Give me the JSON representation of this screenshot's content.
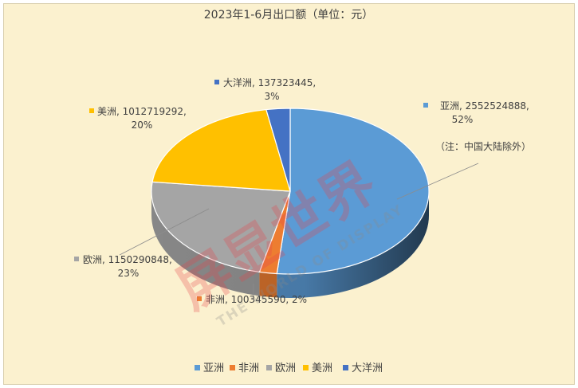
{
  "chart_data": {
    "type": "pie",
    "title": "2023年1-6月出口额（单位：元）",
    "categories": [
      "亚洲",
      "非洲",
      "欧洲",
      "美洲",
      "大洋洲"
    ],
    "values": [
      2552524888,
      100345590,
      1150290848,
      1012719292,
      137323445
    ],
    "percentages": [
      "52%",
      "2%",
      "23%",
      "20%",
      "3%"
    ],
    "colors": [
      "#5b9bd5",
      "#ed7d31",
      "#a5a5a5",
      "#ffc000",
      "#4472c4"
    ],
    "data_labels": [
      {
        "name": "亚洲",
        "value": "2552524888",
        "pct": "52%"
      },
      {
        "name": "非洲",
        "value": "100345590",
        "pct": "2%"
      },
      {
        "name": "欧洲",
        "value": "1150290848",
        "pct": "23%"
      },
      {
        "name": "美洲",
        "value": "1012719292",
        "pct": "20%"
      },
      {
        "name": "大洋洲",
        "value": "137323445",
        "pct": "3%"
      }
    ],
    "annotation": "（注：中国大陆除外）",
    "legend_position": "bottom",
    "style": "3d-pie"
  },
  "watermark": {
    "cn": "屏显世界",
    "en": "THE WORLD OF DISPLAY"
  }
}
